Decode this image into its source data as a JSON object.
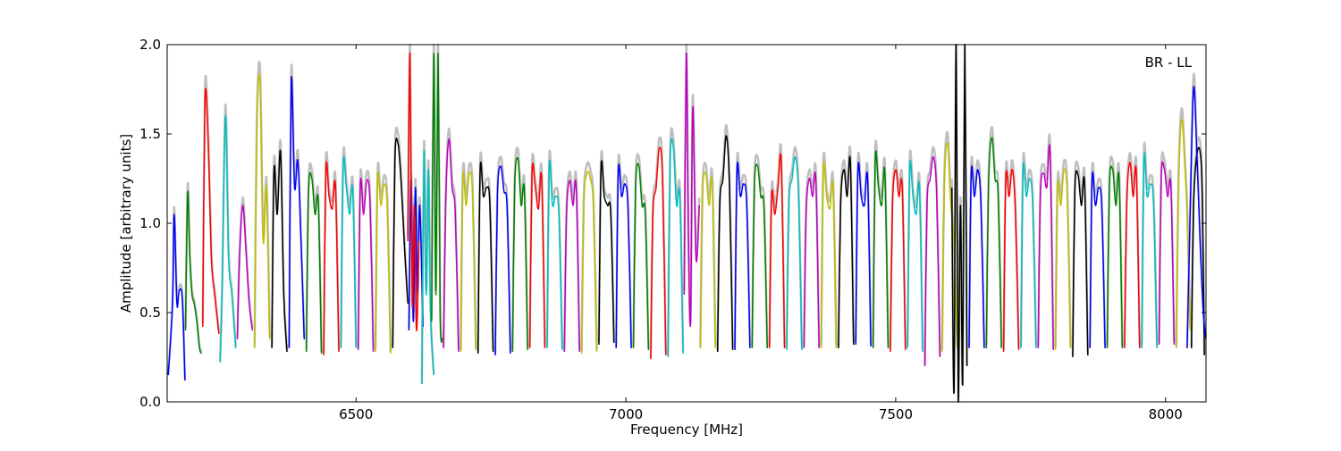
{
  "chart_data": {
    "type": "line",
    "title": "",
    "annotation": "BR - LL",
    "xlabel": "Frequency [MHz]",
    "ylabel": "Amplitude [arbitrary units]",
    "xlim": [
      6150,
      8075
    ],
    "ylim": [
      0.0,
      2.0
    ],
    "xticks": [
      6500,
      7000,
      7500,
      8000
    ],
    "xtick_labels": [
      "6500",
      "7000",
      "7500",
      "8000"
    ],
    "yticks": [
      0.0,
      0.5,
      1.0,
      1.5,
      2.0
    ],
    "ytick_labels": [
      "0.0",
      "0.5",
      "1.0",
      "1.5",
      "2.0"
    ],
    "grid": false,
    "legend": "none",
    "background_trace_color": "#bfbfbf",
    "color_cycle": [
      "#0000ff",
      "#008000",
      "#ff0000",
      "#00bfbf",
      "#bf00bf",
      "#bfbf00",
      "#000000"
    ],
    "channel_width_mhz": 32,
    "first_channel_start_mhz": 6152,
    "segments": [
      {
        "x": [
          6152,
          6160,
          6163,
          6168,
          6172,
          6178,
          6183
        ],
        "y": [
          0.15,
          0.55,
          1.05,
          0.55,
          0.62,
          0.58,
          0.12
        ],
        "color": "#0000ff"
      },
      {
        "x": [
          6184,
          6188,
          6192,
          6196,
          6200,
          6205,
          6210,
          6214
        ],
        "y": [
          0.4,
          1.17,
          0.8,
          0.6,
          0.55,
          0.45,
          0.3,
          0.27
        ],
        "color": "#008000"
      },
      {
        "x": [
          6216,
          6220,
          6226,
          6232,
          6238,
          6246
        ],
        "y": [
          0.42,
          1.7,
          1.45,
          0.8,
          0.6,
          0.38
        ],
        "color": "#ff0000"
      },
      {
        "x": [
          6248,
          6252,
          6258,
          6264,
          6270,
          6277
        ],
        "y": [
          0.22,
          0.65,
          1.6,
          0.8,
          0.6,
          0.3
        ],
        "color": "#00bfbf"
      },
      {
        "x": [
          6280,
          6284,
          6290,
          6296,
          6302,
          6308
        ],
        "y": [
          0.35,
          0.8,
          1.1,
          0.85,
          0.55,
          0.4
        ],
        "color": "#bf00bf"
      },
      {
        "x": [
          6312,
          6316,
          6322,
          6328,
          6334,
          6340
        ],
        "y": [
          0.3,
          1.5,
          1.8,
          0.9,
          1.2,
          0.35
        ],
        "color": "#bfbf00"
      },
      {
        "x": [
          6344,
          6348,
          6354,
          6360,
          6366,
          6372
        ],
        "y": [
          0.3,
          1.3,
          1.05,
          1.4,
          0.6,
          0.28
        ],
        "color": "#000000"
      },
      {
        "x": [
          6376,
          6380,
          6386,
          6392,
          6398,
          6404
        ],
        "y": [
          0.3,
          1.8,
          1.2,
          1.35,
          0.9,
          0.35
        ],
        "color": "#0000ff"
      },
      {
        "x": [
          6408,
          6412,
          6418,
          6424,
          6430,
          6436
        ],
        "y": [
          0.28,
          1.18,
          1.25,
          1.05,
          1.12,
          0.27
        ],
        "color": "#008000"
      },
      {
        "x": [
          6440,
          6444,
          6450,
          6456,
          6462,
          6468
        ],
        "y": [
          0.26,
          1.3,
          1.15,
          1.08,
          1.2,
          0.28
        ],
        "color": "#ff0000"
      },
      {
        "x": [
          6472,
          6476,
          6482,
          6488,
          6494,
          6500
        ],
        "y": [
          0.3,
          1.32,
          1.2,
          1.05,
          1.18,
          0.3
        ],
        "color": "#00bfbf"
      },
      {
        "x": [
          6504,
          6508,
          6514,
          6520,
          6526,
          6532
        ],
        "y": [
          0.29,
          1.22,
          1.05,
          1.24,
          1.1,
          0.28
        ],
        "color": "#bf00bf"
      },
      {
        "x": [
          6536,
          6540,
          6546,
          6552,
          6558,
          6564
        ],
        "y": [
          0.28,
          1.25,
          1.1,
          1.22,
          1.08,
          0.27
        ],
        "color": "#bfbf00"
      },
      {
        "x": [
          6568,
          6572,
          6578,
          6584,
          6590,
          6596
        ],
        "y": [
          0.3,
          1.35,
          1.44,
          1.2,
          0.85,
          0.55
        ],
        "color": "#000000"
      },
      {
        "x": [
          6598,
          6602,
          6606,
          6610,
          6614,
          6618,
          6624
        ],
        "y": [
          0.4,
          1.25,
          0.45,
          1.2,
          0.6,
          1.1,
          0.42
        ],
        "color": "#0000ff"
      },
      {
        "x": [
          6596,
          6600,
          6604,
          6608,
          6612,
          6616
        ],
        "y": [
          0.9,
          1.95,
          0.55,
          1.1,
          0.4,
          0.9
        ],
        "color": "#ff0000"
      },
      {
        "x": [
          6622,
          6626,
          6630,
          6634,
          6638,
          6644
        ],
        "y": [
          0.1,
          1.4,
          0.6,
          1.3,
          0.5,
          0.15
        ],
        "color": "#00bfbf"
      },
      {
        "x": [
          6640,
          6644,
          6648,
          6652,
          6656,
          6660
        ],
        "y": [
          0.45,
          1.95,
          0.6,
          1.95,
          0.5,
          0.35
        ],
        "color": "#008000"
      },
      {
        "x": [
          6662,
          6666,
          6672,
          6678,
          6684,
          6690
        ],
        "y": [
          0.3,
          1.1,
          1.47,
          1.2,
          1.05,
          0.28
        ],
        "color": "#bf00bf"
      },
      {
        "x": [
          6694,
          6698,
          6704,
          6710,
          6716,
          6722
        ],
        "y": [
          0.28,
          1.25,
          1.1,
          1.28,
          1.15,
          0.29
        ],
        "color": "#bfbf00"
      },
      {
        "x": [
          6726,
          6730,
          6736,
          6742,
          6748,
          6754
        ],
        "y": [
          0.27,
          1.3,
          1.15,
          1.2,
          1.1,
          0.28
        ],
        "color": "#000000"
      },
      {
        "x": [
          6758,
          6762,
          6768,
          6774,
          6780,
          6786
        ],
        "y": [
          0.26,
          1.15,
          1.32,
          1.18,
          1.08,
          0.27
        ],
        "color": "#0000ff"
      },
      {
        "x": [
          6790,
          6794,
          6800,
          6806,
          6812,
          6818
        ],
        "y": [
          0.28,
          1.2,
          1.36,
          1.1,
          1.18,
          0.29
        ],
        "color": "#008000"
      },
      {
        "x": [
          6822,
          6826,
          6832,
          6838,
          6844,
          6850
        ],
        "y": [
          0.3,
          1.28,
          1.2,
          1.08,
          1.25,
          0.3
        ],
        "color": "#ff0000"
      },
      {
        "x": [
          6854,
          6858,
          6864,
          6870,
          6876,
          6882
        ],
        "y": [
          0.3,
          1.32,
          1.1,
          1.15,
          1.05,
          0.29
        ],
        "color": "#00bfbf"
      },
      {
        "x": [
          6886,
          6890,
          6896,
          6902,
          6908,
          6914
        ],
        "y": [
          0.28,
          1.05,
          1.24,
          1.1,
          1.2,
          0.28
        ],
        "color": "#bf00bf"
      },
      {
        "x": [
          6918,
          6922,
          6928,
          6934,
          6940,
          6946
        ],
        "y": [
          0.27,
          1.1,
          1.28,
          1.25,
          1.08,
          0.28
        ],
        "color": "#bfbf00"
      },
      {
        "x": [
          6950,
          6954,
          6960,
          6966,
          6972,
          6978
        ],
        "y": [
          0.32,
          1.31,
          1.15,
          1.1,
          1.05,
          0.33
        ],
        "color": "#000000"
      },
      {
        "x": [
          6982,
          6986,
          6992,
          6998,
          7004,
          7010
        ],
        "y": [
          0.3,
          1.29,
          1.15,
          1.22,
          1.08,
          0.3
        ],
        "color": "#0000ff"
      },
      {
        "x": [
          7014,
          7018,
          7024,
          7030,
          7036,
          7042
        ],
        "y": [
          0.3,
          1.2,
          1.32,
          1.1,
          1.05,
          0.29
        ],
        "color": "#008000"
      },
      {
        "x": [
          7046,
          7050,
          7056,
          7062,
          7068,
          7074
        ],
        "y": [
          0.24,
          1.05,
          1.2,
          1.42,
          1.25,
          0.26
        ],
        "color": "#ff0000"
      },
      {
        "x": [
          7078,
          7082,
          7088,
          7094,
          7100,
          7106
        ],
        "y": [
          0.25,
          1.35,
          1.42,
          1.1,
          1.15,
          0.27
        ],
        "color": "#00bfbf"
      },
      {
        "x": [
          7108,
          7112,
          7116,
          7120,
          7124,
          7130,
          7136
        ],
        "y": [
          0.6,
          1.95,
          0.9,
          0.45,
          1.65,
          0.8,
          1.1
        ],
        "color": "#bf00bf"
      },
      {
        "x": [
          7138,
          7142,
          7148,
          7154,
          7160,
          7166
        ],
        "y": [
          0.3,
          1.15,
          1.28,
          1.1,
          1.22,
          0.3
        ],
        "color": "#bfbf00"
      },
      {
        "x": [
          7170,
          7174,
          7180,
          7186,
          7192,
          7198
        ],
        "y": [
          0.28,
          1.1,
          1.25,
          1.49,
          1.2,
          0.29
        ],
        "color": "#000000"
      },
      {
        "x": [
          7202,
          7206,
          7212,
          7218,
          7224,
          7230
        ],
        "y": [
          0.29,
          1.3,
          1.15,
          1.22,
          1.1,
          0.3
        ],
        "color": "#0000ff"
      },
      {
        "x": [
          7234,
          7238,
          7244,
          7250,
          7256,
          7262
        ],
        "y": [
          0.3,
          1.2,
          1.32,
          1.15,
          1.08,
          0.3
        ],
        "color": "#008000"
      },
      {
        "x": [
          7266,
          7270,
          7276,
          7282,
          7288,
          7294
        ],
        "y": [
          0.3,
          1.15,
          1.05,
          1.2,
          1.34,
          0.3
        ],
        "color": "#ff0000"
      },
      {
        "x": [
          7298,
          7302,
          7308,
          7314,
          7320,
          7326
        ],
        "y": [
          0.29,
          1.1,
          1.25,
          1.37,
          1.15,
          0.29
        ],
        "color": "#00bfbf"
      },
      {
        "x": [
          7330,
          7334,
          7340,
          7346,
          7352,
          7358
        ],
        "y": [
          0.3,
          1.05,
          1.25,
          1.15,
          1.24,
          0.3
        ],
        "color": "#bf00bf"
      },
      {
        "x": [
          7362,
          7366,
          7372,
          7378,
          7384,
          7390
        ],
        "y": [
          0.3,
          1.3,
          1.15,
          1.08,
          1.2,
          0.3
        ],
        "color": "#bfbf00"
      },
      {
        "x": [
          7394,
          7398,
          7404,
          7410,
          7416,
          7422
        ],
        "y": [
          0.3,
          1.1,
          1.3,
          1.15,
          1.34,
          0.32
        ],
        "color": "#000000"
      },
      {
        "x": [
          7426,
          7430,
          7436,
          7442,
          7448,
          7454
        ],
        "y": [
          0.32,
          1.3,
          1.15,
          1.1,
          1.25,
          0.31
        ],
        "color": "#0000ff"
      },
      {
        "x": [
          7458,
          7462,
          7468,
          7474,
          7480,
          7486
        ],
        "y": [
          0.3,
          1.36,
          1.2,
          1.1,
          1.28,
          0.3
        ],
        "color": "#008000"
      },
      {
        "x": [
          7490,
          7494,
          7500,
          7506,
          7512,
          7518
        ],
        "y": [
          0.28,
          1.1,
          1.3,
          1.15,
          1.2,
          0.29
        ],
        "color": "#ff0000"
      },
      {
        "x": [
          7522,
          7526,
          7532,
          7538,
          7544,
          7550
        ],
        "y": [
          0.3,
          1.31,
          1.15,
          1.05,
          1.2,
          0.28
        ],
        "color": "#00bfbf"
      },
      {
        "x": [
          7554,
          7558,
          7564,
          7570,
          7576,
          7582
        ],
        "y": [
          0.2,
          1.1,
          1.25,
          1.37,
          1.15,
          0.25
        ],
        "color": "#bf00bf"
      },
      {
        "x": [
          7586,
          7590,
          7596,
          7602,
          7608,
          7614
        ],
        "y": [
          0.28,
          1.2,
          1.45,
          1.1,
          0.9,
          0.3
        ],
        "color": "#bfbf00"
      },
      {
        "x": [
          7604,
          7608,
          7612,
          7616,
          7620,
          7624,
          7628,
          7632
        ],
        "y": [
          1.2,
          0.05,
          2.0,
          0.0,
          1.1,
          0.1,
          2.0,
          0.2
        ],
        "color": "#000000"
      },
      {
        "x": [
          7636,
          7640,
          7646,
          7652,
          7658,
          7664
        ],
        "y": [
          0.3,
          1.28,
          1.15,
          1.3,
          1.1,
          0.3
        ],
        "color": "#0000ff"
      },
      {
        "x": [
          7668,
          7672,
          7678,
          7684,
          7690,
          7696
        ],
        "y": [
          0.3,
          1.2,
          1.48,
          1.25,
          1.15,
          0.3
        ],
        "color": "#008000"
      },
      {
        "x": [
          7700,
          7704,
          7710,
          7716,
          7722,
          7728
        ],
        "y": [
          0.28,
          1.25,
          1.15,
          1.3,
          1.05,
          0.29
        ],
        "color": "#ff0000"
      },
      {
        "x": [
          7732,
          7736,
          7742,
          7748,
          7754,
          7760
        ],
        "y": [
          0.3,
          1.3,
          1.15,
          1.25,
          1.1,
          0.3
        ],
        "color": "#00bfbf"
      },
      {
        "x": [
          7764,
          7768,
          7774,
          7780,
          7786,
          7792
        ],
        "y": [
          0.3,
          1.15,
          1.28,
          1.2,
          1.4,
          0.29
        ],
        "color": "#bf00bf"
      },
      {
        "x": [
          7796,
          7800,
          7806,
          7812,
          7818,
          7824
        ],
        "y": [
          0.29,
          1.2,
          1.1,
          1.3,
          1.15,
          0.3
        ],
        "color": "#bfbf00"
      },
      {
        "x": [
          7828,
          7832,
          7838,
          7844,
          7850,
          7856
        ],
        "y": [
          0.25,
          1.18,
          1.27,
          1.1,
          1.22,
          0.26
        ],
        "color": "#000000"
      },
      {
        "x": [
          7860,
          7864,
          7870,
          7876,
          7882,
          7888
        ],
        "y": [
          0.3,
          1.25,
          1.1,
          1.2,
          1.08,
          0.3
        ],
        "color": "#0000ff"
      },
      {
        "x": [
          7892,
          7896,
          7902,
          7908,
          7914,
          7920
        ],
        "y": [
          0.3,
          1.2,
          1.3,
          1.1,
          1.25,
          0.3
        ],
        "color": "#008000"
      },
      {
        "x": [
          7924,
          7928,
          7934,
          7940,
          7946,
          7952
        ],
        "y": [
          0.3,
          1.1,
          1.34,
          1.15,
          1.28,
          0.3
        ],
        "color": "#ff0000"
      },
      {
        "x": [
          7956,
          7960,
          7966,
          7972,
          7978,
          7984
        ],
        "y": [
          0.3,
          1.36,
          1.15,
          1.22,
          1.1,
          0.3
        ],
        "color": "#00bfbf"
      },
      {
        "x": [
          7988,
          7992,
          7998,
          8004,
          8010,
          8016
        ],
        "y": [
          0.32,
          1.25,
          1.3,
          1.15,
          1.2,
          0.32
        ],
        "color": "#bf00bf"
      },
      {
        "x": [
          8020,
          8024,
          8030,
          8036,
          8040,
          8046
        ],
        "y": [
          0.3,
          1.2,
          1.58,
          1.3,
          1.05,
          0.4
        ],
        "color": "#bfbf00"
      },
      {
        "x": [
          8048,
          8052,
          8058,
          8064,
          8068,
          8072
        ],
        "y": [
          0.3,
          1.1,
          1.38,
          1.4,
          1.15,
          0.26
        ],
        "color": "#000000"
      },
      {
        "x": [
          8040,
          8046,
          8052,
          8058,
          8064,
          8070,
          8075
        ],
        "y": [
          0.3,
          1.1,
          1.76,
          1.4,
          0.9,
          0.5,
          0.35
        ],
        "color": "#0000ff"
      }
    ]
  }
}
